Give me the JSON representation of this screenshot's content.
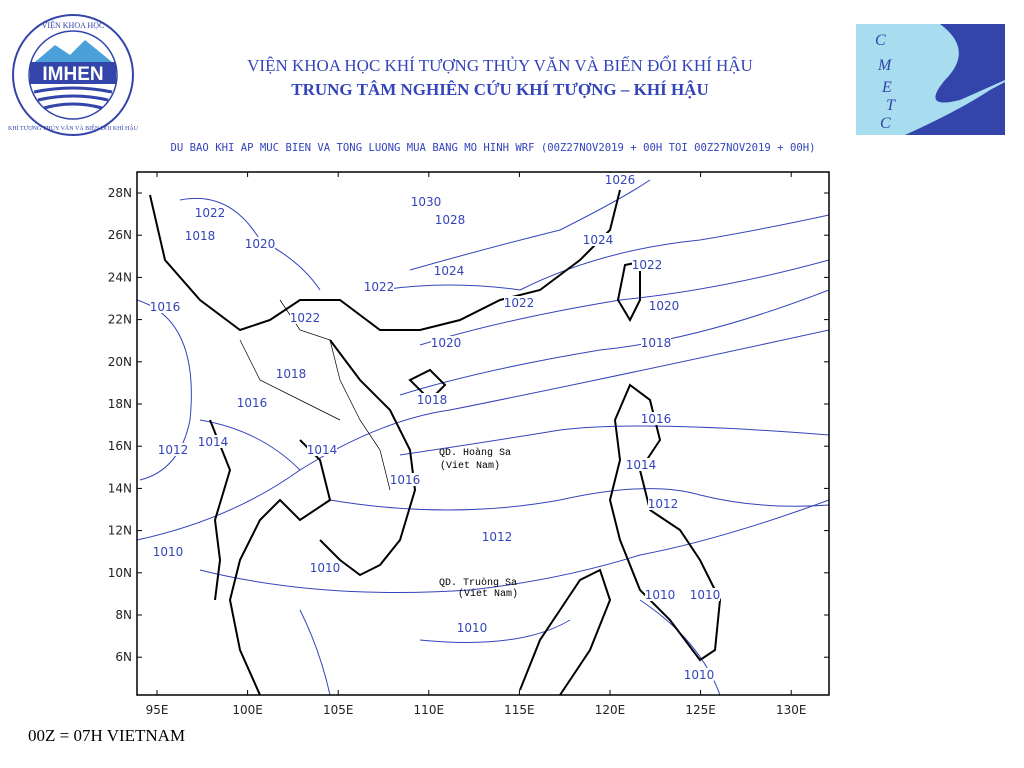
{
  "header": {
    "institute": "VIỆN KHOA HỌC KHÍ TƯỢNG THỦY VĂN VÀ BIẾN ĐỔI KHÍ HẬU",
    "center": "TRUNG TÂM NGHIÊN CỨU KHÍ TƯỢNG – KHÍ HẬU",
    "subtitle": "DU BAO KHI AP MUC BIEN VA TONG LUONG MUA BANG MO HINH WRF (00Z27NOV2019 + 00H TOI 00Z27NOV2019 + 00H)"
  },
  "logos": {
    "imhen": {
      "name": "IMHEN",
      "ring_top": "VIỆN KHOA HỌC",
      "ring_bottom": "KHÍ TƯỢNG THỦY VĂN VÀ BIẾN ĐỔI KHÍ HẬU"
    },
    "cmetc": [
      "C",
      "M",
      "E",
      "T",
      "C"
    ]
  },
  "map": {
    "lon_labels": [
      "95E",
      "100E",
      "105E",
      "110E",
      "115E",
      "120E",
      "125E",
      "130E"
    ],
    "lat_labels": [
      "28N",
      "26N",
      "24N",
      "22N",
      "20N",
      "18N",
      "16N",
      "14N",
      "12N",
      "10N",
      "8N",
      "6N"
    ],
    "isobar_labels": [
      "1026",
      "1022",
      "1018",
      "1020",
      "1030",
      "1028",
      "1024",
      "1024",
      "1022",
      "1022",
      "1016",
      "1022",
      "1020",
      "1022",
      "1020",
      "1018",
      "1018",
      "1016",
      "1018",
      "1016",
      "1014",
      "1012",
      "1014",
      "1016",
      "1014",
      "1012",
      "1012",
      "1010",
      "1010",
      "1010",
      "1010",
      "1010",
      "1010"
    ],
    "annotations": [
      [
        "QD. Hoàng Sa",
        "(Viet Nam)"
      ],
      [
        "QD. Truòng Sa",
        "(Viet Nam)"
      ]
    ]
  },
  "footer": "00Z = 07H VIETNAM"
}
